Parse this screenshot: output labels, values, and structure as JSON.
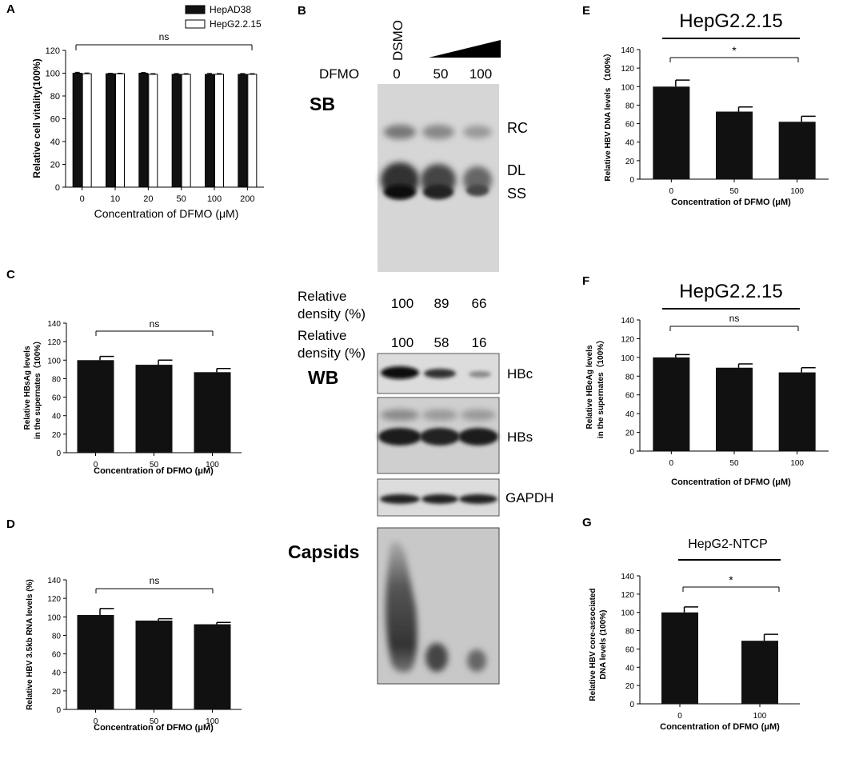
{
  "panels": {
    "A": {
      "letter": "A",
      "legend": [
        "HepAD38",
        "HepG2.2.15"
      ],
      "sig": "ns",
      "ylabel": "Relative cell vitality(100%)",
      "xlabel": "Concentration of DFMO (μM)",
      "yticks": [
        "0",
        "20",
        "40",
        "60",
        "80",
        "100",
        "120"
      ]
    },
    "B": {
      "letter": "B",
      "dsmo_label": "DSMO",
      "dfmo_label": "DFMO",
      "lane_labels": [
        "0",
        "50",
        "100"
      ],
      "sb_label": "SB",
      "wb_label": "WB",
      "capsids_label": "Capsids",
      "band_labels": [
        "RC",
        "DL",
        "SS"
      ],
      "rel_density_label": [
        "Relative",
        "density (%)"
      ],
      "sb_density": [
        "100",
        "89",
        "66"
      ],
      "wb_density": [
        "100",
        "58",
        "16"
      ],
      "wb_bands": [
        "HBc",
        "HBs",
        "GAPDH"
      ]
    },
    "C": {
      "letter": "C",
      "sig": "ns",
      "ylabel1": "Relative HBsAg  levels",
      "ylabel2": "in the supernates（100%）",
      "xlabel": "Concentration of DFMO (μM)",
      "yticks": [
        "0",
        "20",
        "40",
        "60",
        "80",
        "100",
        "120",
        "140"
      ]
    },
    "D": {
      "letter": "D",
      "sig": "ns",
      "ylabel": "Relative HBV 3.5kb RNA levels (%)",
      "xlabel": "Concentration of DFMO (μM)",
      "yticks": [
        "0",
        "20",
        "40",
        "60",
        "80",
        "100",
        "120",
        "140"
      ]
    },
    "E": {
      "letter": "E",
      "title": "HepG2.2.15",
      "sig": "*",
      "ylabel": "Relative HBV DNA levels （100%）",
      "xlabel": "Concentration of DFMO (μM)",
      "yticks": [
        "0",
        "20",
        "40",
        "60",
        "80",
        "100",
        "120",
        "140"
      ]
    },
    "F": {
      "letter": "F",
      "title": "HepG2.2.15",
      "sig": "ns",
      "ylabel1": "Relative HBeAg  levels",
      "ylabel2": "in the supernates（100%）",
      "xlabel": "Concentration of DFMO (μM)",
      "yticks": [
        "0",
        "20",
        "40",
        "60",
        "80",
        "100",
        "120",
        "140"
      ]
    },
    "G": {
      "letter": "G",
      "title": "HepG2-NTCP",
      "sig": "*",
      "ylabel1": "Relative HBV core-associated",
      "ylabel2": "DNA  levels (100%)",
      "xlabel": "Concentration of DFMO (μM)",
      "yticks": [
        "0",
        "20",
        "40",
        "60",
        "80",
        "100",
        "120",
        "140"
      ]
    }
  },
  "colors": {
    "bar": "#111111",
    "bar_open": "#ffffff",
    "axis": "#000000"
  },
  "chart_data": [
    {
      "id": "A",
      "type": "bar",
      "categories": [
        "0",
        "10",
        "20",
        "50",
        "100",
        "200"
      ],
      "series": [
        {
          "name": "HepAD38",
          "values": [
            100,
            99.5,
            100,
            99,
            99,
            99
          ],
          "errors": [
            0.8,
            0.5,
            0.6,
            0.7,
            0.8,
            0.7
          ]
        },
        {
          "name": "HepG2.2.15",
          "values": [
            99.5,
            99.5,
            99,
            99,
            99,
            99
          ],
          "errors": [
            0.7,
            0.5,
            0.6,
            0.6,
            0.7,
            0.6
          ]
        }
      ],
      "ylim": [
        0,
        120
      ]
    },
    {
      "id": "C",
      "type": "bar",
      "categories": [
        "0",
        "50",
        "100"
      ],
      "values": [
        100,
        95,
        87
      ],
      "errors": [
        4,
        5,
        4
      ],
      "ylim": [
        0,
        140
      ]
    },
    {
      "id": "D",
      "type": "bar",
      "categories": [
        "0",
        "50",
        "100"
      ],
      "values": [
        102,
        96,
        92
      ],
      "errors": [
        7,
        2,
        2
      ],
      "ylim": [
        0,
        140
      ]
    },
    {
      "id": "E",
      "type": "bar",
      "categories": [
        "0",
        "50",
        "100"
      ],
      "values": [
        100,
        73,
        62
      ],
      "errors": [
        7,
        5,
        6
      ],
      "ylim": [
        0,
        140
      ]
    },
    {
      "id": "F",
      "type": "bar",
      "categories": [
        "0",
        "50",
        "100"
      ],
      "values": [
        100,
        89,
        84
      ],
      "errors": [
        3,
        4,
        5
      ],
      "ylim": [
        0,
        140
      ]
    },
    {
      "id": "G",
      "type": "bar",
      "categories": [
        "0",
        "100"
      ],
      "values": [
        100,
        69
      ],
      "errors": [
        6,
        7
      ],
      "ylim": [
        0,
        140
      ]
    }
  ]
}
